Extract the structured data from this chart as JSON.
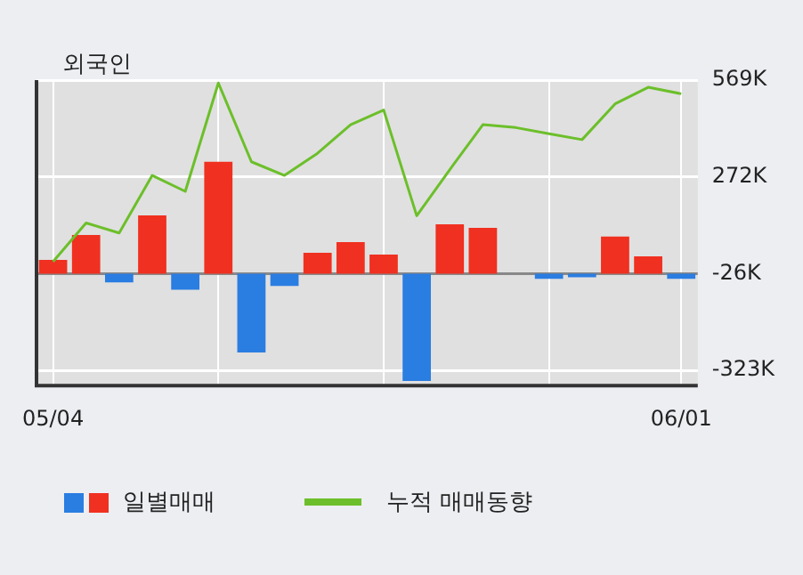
{
  "chart_data": {
    "type": "bar",
    "title": "외국인",
    "categories": [
      "05/04",
      null,
      null,
      null,
      null,
      null,
      null,
      null,
      null,
      null,
      null,
      null,
      null,
      null,
      null,
      null,
      null,
      null,
      null,
      "06/01"
    ],
    "series": [
      {
        "name": "일별매매",
        "colors": [
          "#f03020",
          "#f03020",
          "#2a7de1",
          "#f03020",
          "#2a7de1",
          "#f03020",
          "#2a7de1",
          "#2a7de1",
          "#f03020",
          "#f03020",
          "#f03020",
          "#2a7de1",
          "#f03020",
          "#f03020",
          "#f03020",
          "#2a7de1",
          "#2a7de1",
          "#f03020",
          "#f03020",
          "#2a7de1"
        ],
        "base": [
          -26,
          -26,
          -26,
          -26,
          -26,
          -26,
          -26,
          -26,
          -26,
          -26,
          -26,
          -26,
          -26,
          -26,
          null,
          -26,
          -26,
          -26,
          -26,
          -26
        ],
        "values": [
          42,
          119,
          -27,
          179,
          -49,
          344,
          -242,
          -38,
          64,
          97,
          59,
          -330,
          152,
          141,
          null,
          -16,
          -11,
          114,
          53,
          -16
        ]
      },
      {
        "name": "누적 매매동향",
        "type": "line",
        "color": "#6cbf2a",
        "values": [
          11,
          130,
          99,
          276,
          227,
          560,
          318,
          276,
          344,
          432,
          477,
          152,
          294,
          432,
          423,
          404,
          386,
          496,
          547,
          527
        ]
      }
    ],
    "ylim": [
      -370,
      569
    ],
    "yticks": [
      {
        "value": 569,
        "label": "569K"
      },
      {
        "value": 272,
        "label": "272K"
      },
      {
        "value": -26,
        "label": "-26K"
      },
      {
        "value": -323,
        "label": "-323K"
      }
    ],
    "ref_lines": [
      {
        "axis": "y",
        "value": -26,
        "color": "#888888"
      }
    ],
    "grid": true,
    "legend": "bottom",
    "marker": "none"
  }
}
